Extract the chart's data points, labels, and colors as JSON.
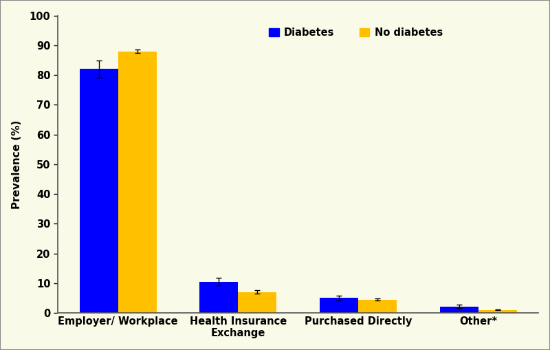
{
  "categories": [
    "Employer/ Workplace",
    "Health Insurance\nExchange",
    "Purchased Directly",
    "Other*"
  ],
  "diabetes_values": [
    82,
    10.5,
    5.0,
    2.2
  ],
  "no_diabetes_values": [
    88,
    7.0,
    4.5,
    1.0
  ],
  "diabetes_errors": [
    2.8,
    1.3,
    0.8,
    0.65
  ],
  "no_diabetes_errors": [
    0.5,
    0.6,
    0.4,
    0.15
  ],
  "diabetes_color": "#0000FF",
  "no_diabetes_color": "#FFC000",
  "ylabel": "Prevalence (%)",
  "ylim": [
    0,
    100
  ],
  "yticks": [
    0,
    10,
    20,
    30,
    40,
    50,
    60,
    70,
    80,
    90,
    100
  ],
  "background_color": "#FAFAE8",
  "legend_labels": [
    "Diabetes",
    "No diabetes"
  ],
  "bar_width": 0.32,
  "tick_fontsize": 10.5,
  "label_fontsize": 11,
  "legend_fontsize": 10.5
}
